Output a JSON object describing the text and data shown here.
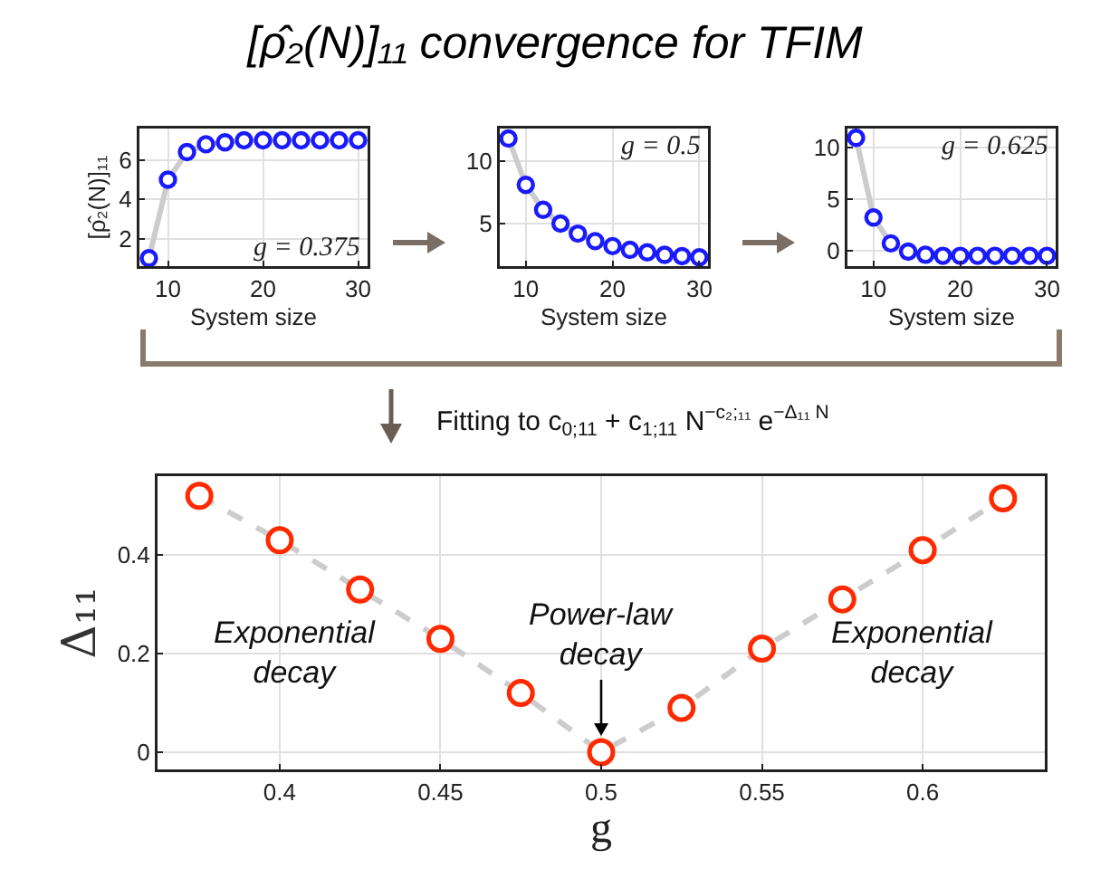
{
  "chart_data": [
    {
      "type": "line",
      "title": "[ρ̂₂(N)]₁₁ convergence for TFIM",
      "xlabel": "System size",
      "ylabel": "[ρ̂₂(N)]₁₁",
      "annotations": [
        "g = 0.375"
      ],
      "x": [
        8,
        10,
        12,
        14,
        16,
        18,
        20,
        22,
        24,
        26,
        28,
        30
      ],
      "series": [
        {
          "color": "#1a1aff",
          "values": [
            1.0,
            5.0,
            6.4,
            6.8,
            6.9,
            7.0,
            7.0,
            7.0,
            7.0,
            7.0,
            7.0,
            7.0
          ]
        }
      ],
      "xlim": [
        7,
        31
      ],
      "xticks": [
        10,
        20,
        30
      ],
      "ylim": [
        0.6,
        7.6
      ],
      "yticks": [
        2,
        4,
        6
      ],
      "grid": true,
      "marker": "circle",
      "line_style": "solid"
    },
    {
      "type": "line",
      "xlabel": "System size",
      "annotations": [
        "g = 0.5"
      ],
      "x": [
        8,
        10,
        12,
        14,
        16,
        18,
        20,
        22,
        24,
        26,
        28,
        30
      ],
      "series": [
        {
          "color": "#1a1aff",
          "values": [
            11.8,
            8.1,
            6.1,
            5.0,
            4.2,
            3.6,
            3.2,
            2.9,
            2.7,
            2.5,
            2.4,
            2.3
          ]
        }
      ],
      "xlim": [
        7,
        31
      ],
      "xticks": [
        10,
        20,
        30
      ],
      "ylim": [
        1.6,
        12.6
      ],
      "yticks": [
        5,
        10
      ],
      "grid": true,
      "marker": "circle",
      "line_style": "solid"
    },
    {
      "type": "line",
      "xlabel": "System size",
      "annotations": [
        "g = 0.625"
      ],
      "x": [
        8,
        10,
        12,
        14,
        16,
        18,
        20,
        22,
        24,
        26,
        28,
        30
      ],
      "series": [
        {
          "color": "#1a1aff",
          "values": [
            10.9,
            3.2,
            0.7,
            -0.1,
            -0.4,
            -0.5,
            -0.5,
            -0.5,
            -0.5,
            -0.5,
            -0.5,
            -0.5
          ]
        }
      ],
      "xlim": [
        7,
        31
      ],
      "xticks": [
        10,
        20,
        30
      ],
      "ylim": [
        -1.5,
        11.8
      ],
      "yticks": [
        0,
        5,
        10
      ],
      "grid": true,
      "marker": "circle",
      "line_style": "solid"
    },
    {
      "type": "line",
      "xlabel": "g",
      "ylabel": "Δ₁₁",
      "annotations": [
        "Fitting to c$_{0;11}$ + c$_{1;11}$ N$^{−c₂;₁₁}$ e$^{−Δ₁₁ N}$",
        "Exponential decay",
        {
          "text": "Power-law decay",
          "x": 0.5,
          "y": 0
        },
        "Exponential decay"
      ],
      "x": [
        0.375,
        0.4,
        0.425,
        0.45,
        0.475,
        0.5,
        0.525,
        0.55,
        0.575,
        0.6,
        0.625
      ],
      "series": [
        {
          "color": "#ff2a00",
          "values": [
            0.52,
            0.43,
            0.33,
            0.23,
            0.12,
            0.0,
            0.09,
            0.21,
            0.31,
            0.41,
            0.515
          ]
        }
      ],
      "xlim": [
        0.362,
        0.638
      ],
      "xticks": [
        0.4,
        0.45,
        0.5,
        0.55,
        0.6
      ],
      "ylim": [
        -0.035,
        0.56
      ],
      "yticks": [
        0,
        0.2,
        0.4
      ],
      "grid": true,
      "marker": "circle",
      "line_style": "dashed"
    }
  ]
}
